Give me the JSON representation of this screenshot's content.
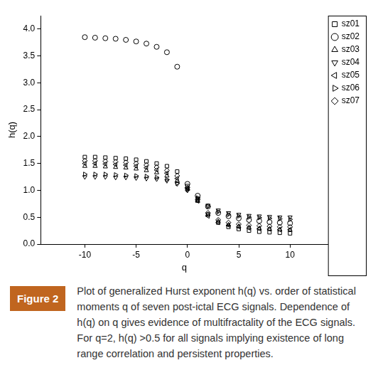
{
  "chart_data": {
    "type": "scatter",
    "x_label": "q",
    "y_label": "h(q)",
    "figure_label": "Figure 2",
    "caption": "Plot of generalized Hurst exponent h(q) vs. order of statistical moments q of seven post-ictal ECG signals. Dependence of h(q) on q gives evidence of multifractality of the ECG signals. For q=2, h(q) >0.5 for all signals implying existence of long range correlation and persistent properties.",
    "x": [
      -10,
      -9,
      -8,
      -7,
      -6,
      -5,
      -4,
      -3,
      -2,
      -1,
      0,
      1,
      2,
      3,
      4,
      5,
      6,
      7,
      8,
      9,
      10
    ],
    "series": [
      {
        "name": "sz01",
        "color": "#000000",
        "marker": "square",
        "values": [
          1.62,
          1.62,
          1.61,
          1.6,
          1.59,
          1.57,
          1.54,
          1.5,
          1.45,
          1.35,
          1.08,
          0.82,
          0.55,
          0.4,
          0.32,
          0.28,
          0.25,
          0.23,
          0.22,
          0.21,
          0.2
        ]
      },
      {
        "name": "sz02",
        "color": "#000000",
        "marker": "circle",
        "values": [
          3.85,
          3.84,
          3.83,
          3.82,
          3.8,
          3.77,
          3.73,
          3.67,
          3.57,
          3.3,
          1.12,
          0.9,
          0.7,
          0.58,
          0.52,
          0.48,
          0.45,
          0.43,
          0.41,
          0.4,
          0.39
        ]
      },
      {
        "name": "sz03",
        "color": "#000000",
        "marker": "triangle-up",
        "values": [
          1.45,
          1.45,
          1.44,
          1.43,
          1.42,
          1.4,
          1.37,
          1.33,
          1.27,
          1.18,
          1.02,
          0.8,
          0.55,
          0.42,
          0.36,
          0.33,
          0.31,
          0.29,
          0.28,
          0.27,
          0.26
        ]
      },
      {
        "name": "sz04",
        "color": "#000000",
        "marker": "triangle-down",
        "values": [
          1.25,
          1.25,
          1.25,
          1.24,
          1.24,
          1.23,
          1.22,
          1.21,
          1.18,
          1.12,
          1.0,
          0.85,
          0.72,
          0.63,
          0.58,
          0.55,
          0.53,
          0.52,
          0.51,
          0.5,
          0.5
        ]
      },
      {
        "name": "sz05",
        "color": "#000000",
        "marker": "triangle-left",
        "values": [
          1.5,
          1.5,
          1.49,
          1.48,
          1.47,
          1.45,
          1.42,
          1.38,
          1.32,
          1.22,
          1.04,
          0.8,
          0.52,
          0.4,
          0.35,
          0.32,
          0.3,
          0.29,
          0.28,
          0.27,
          0.27
        ]
      },
      {
        "name": "sz06",
        "color": "#000000",
        "marker": "triangle-right",
        "values": [
          1.3,
          1.3,
          1.3,
          1.29,
          1.28,
          1.27,
          1.26,
          1.24,
          1.2,
          1.13,
          1.01,
          0.86,
          0.7,
          0.6,
          0.55,
          0.52,
          0.5,
          0.49,
          0.48,
          0.47,
          0.46
        ]
      },
      {
        "name": "sz07",
        "color": "#000000",
        "marker": "diamond",
        "values": [
          1.55,
          1.55,
          1.54,
          1.53,
          1.52,
          1.5,
          1.47,
          1.43,
          1.37,
          1.27,
          1.05,
          0.83,
          0.58,
          0.45,
          0.4,
          0.37,
          0.35,
          0.34,
          0.33,
          0.32,
          0.32
        ]
      }
    ],
    "xlim": [
      -14.3,
      13.7
    ],
    "xticks": [
      -10,
      -5,
      0,
      5,
      10
    ],
    "ylim": [
      0,
      4.25
    ],
    "yticks": [
      {
        "value": 0,
        "label": "0.0"
      },
      {
        "value": 0.5,
        "label": "0.5"
      },
      {
        "value": 1,
        "label": "1.0"
      },
      {
        "value": 1.5,
        "label": "1.5"
      },
      {
        "value": 2,
        "label": "2.0"
      },
      {
        "value": 2.5,
        "label": "2.5"
      },
      {
        "value": 3,
        "label": "3.0"
      },
      {
        "value": 3.5,
        "label": "3.5"
      },
      {
        "value": 4,
        "label": "4.0"
      }
    ],
    "grid": false,
    "legend": "top-right"
  }
}
